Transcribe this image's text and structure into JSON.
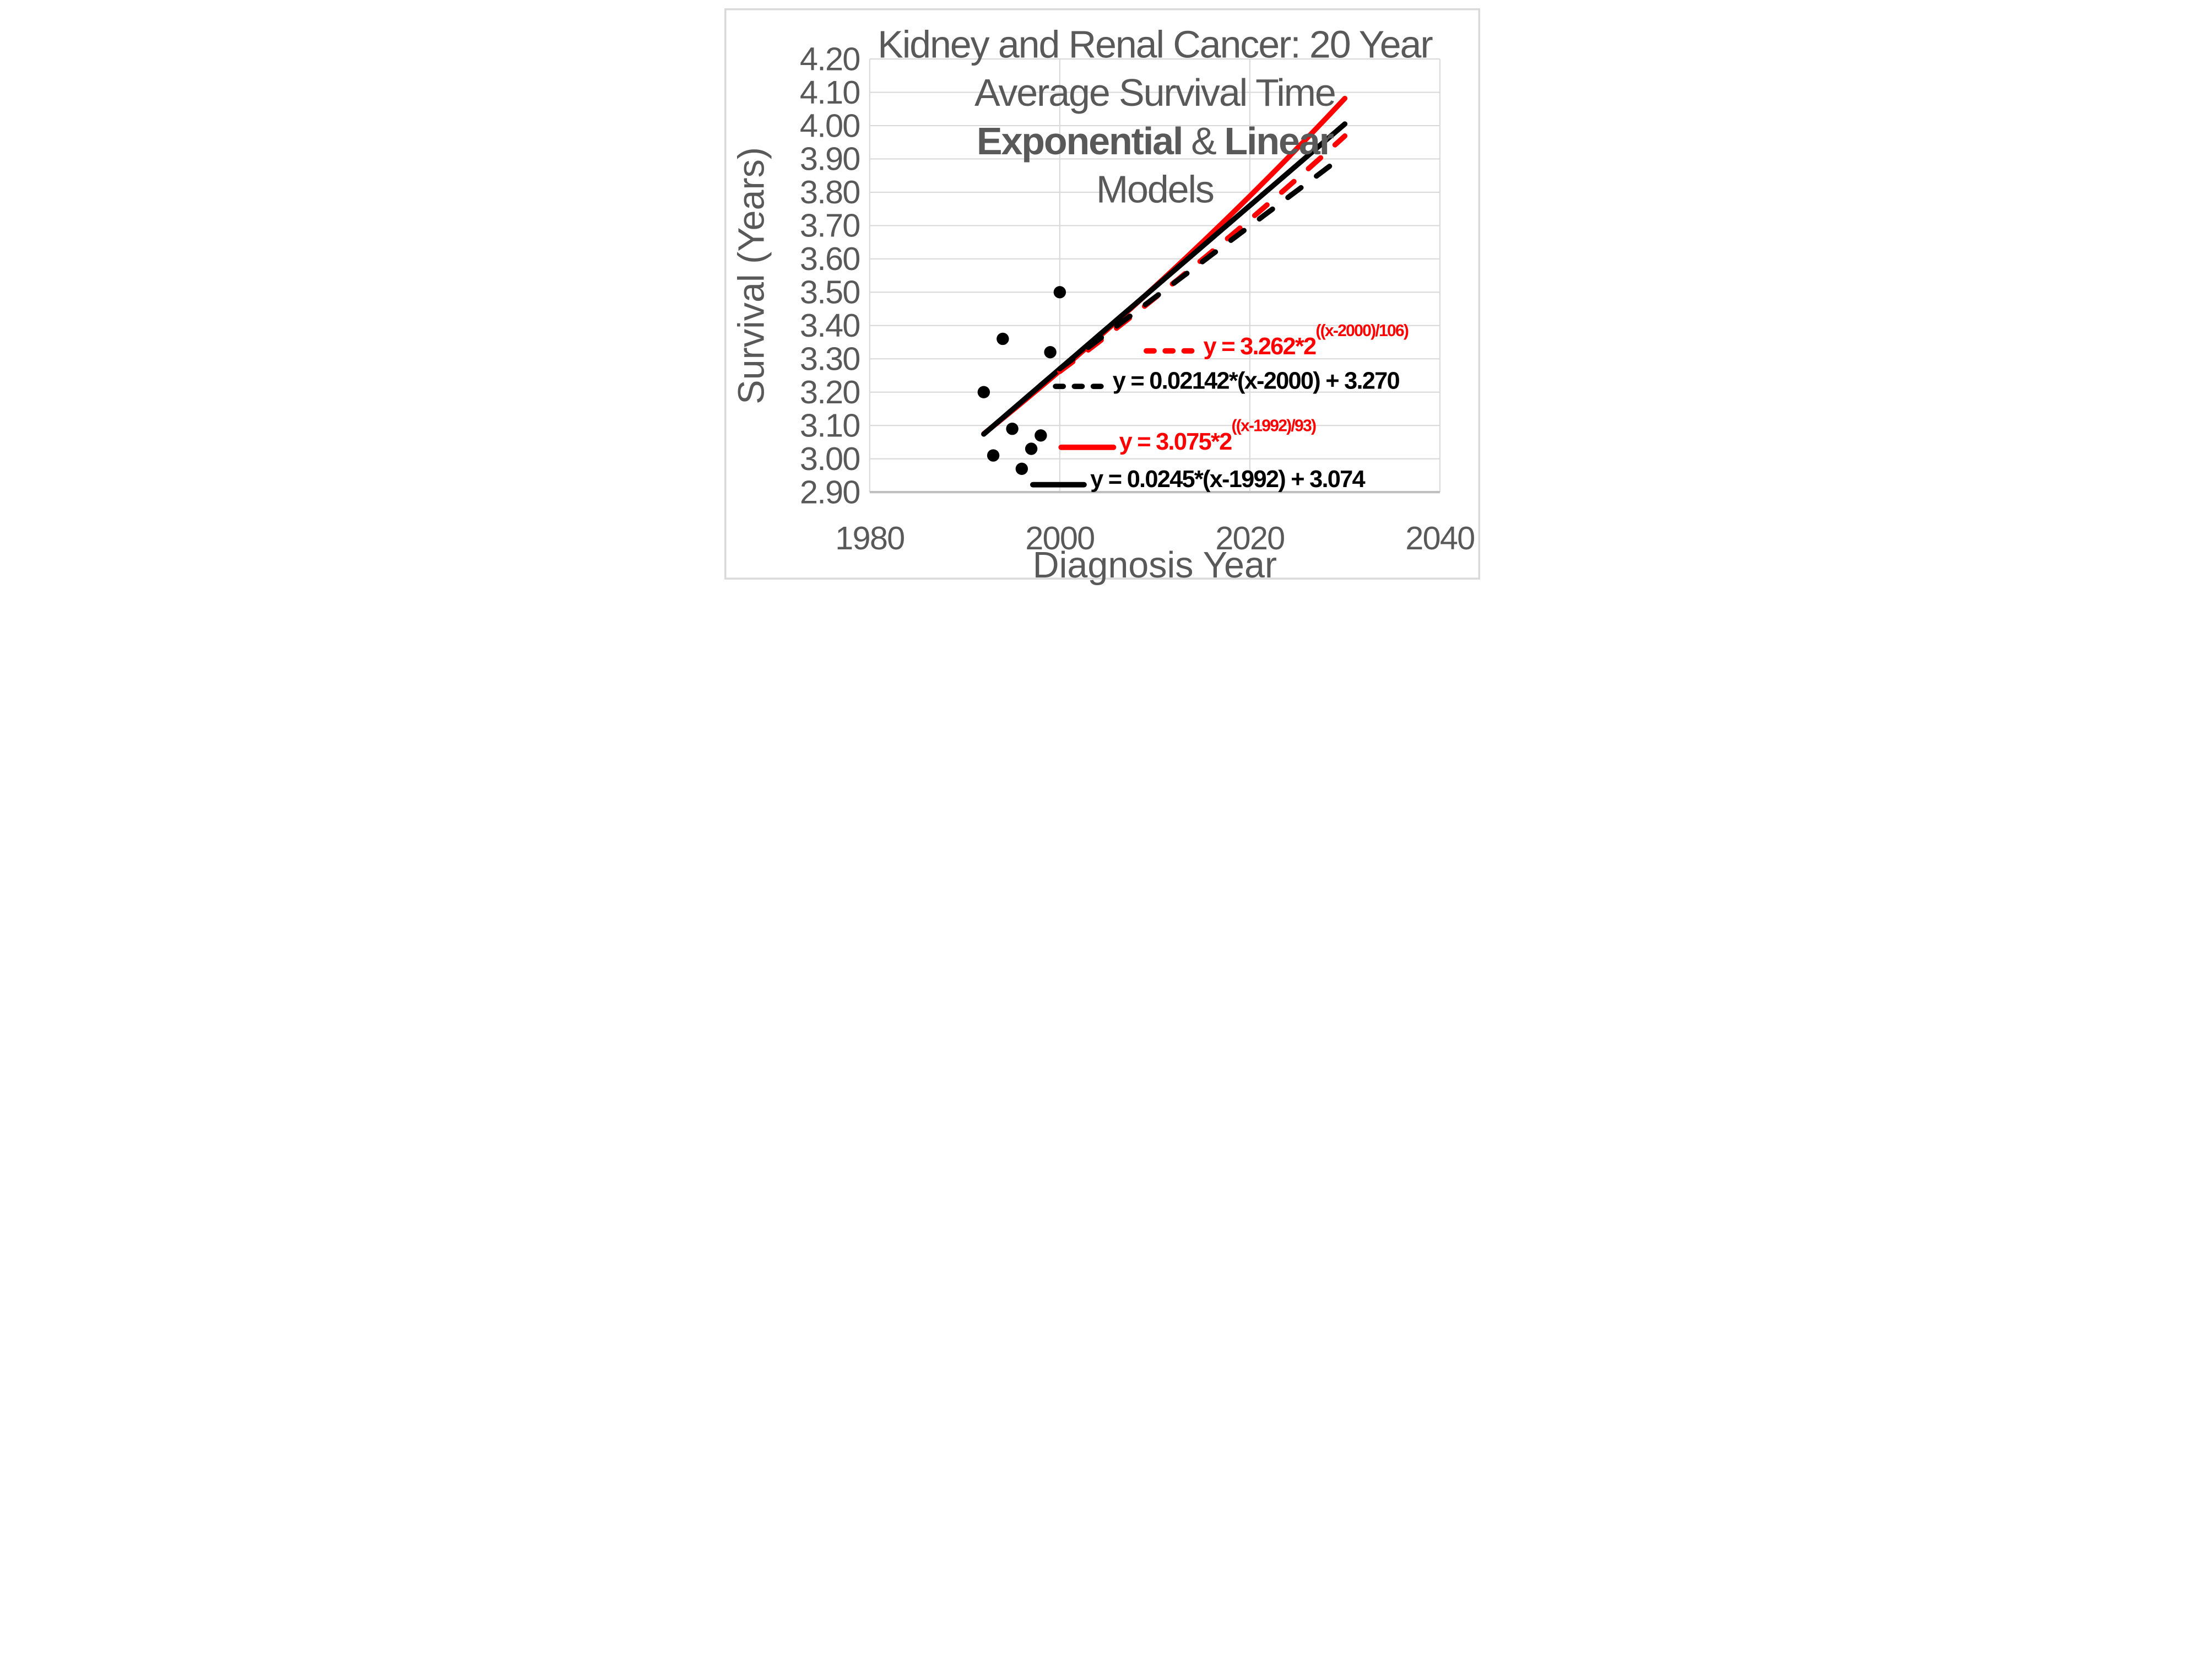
{
  "page": {
    "background": "#FFFFFF",
    "border_color": "#D9D9D9"
  },
  "title": {
    "line1": "Kidney and Renal Cancer: 20 Year",
    "line2": "Average Survival Time",
    "line3_bold1": "Exponential",
    "line3_amp": "&",
    "line3_bold2": "Linear",
    "line4": "Models",
    "color": "#595959"
  },
  "axes": {
    "x_title": "Diagnosis Year",
    "y_title": "Survival (Years)",
    "x_ticks": [
      "1980",
      "2000",
      "2020",
      "2040"
    ],
    "y_ticks": [
      "4.20",
      "4.10",
      "4.00",
      "3.90",
      "3.80",
      "3.70",
      "3.60",
      "3.50",
      "3.40",
      "3.30",
      "3.20",
      "3.10",
      "3.00",
      "2.90"
    ],
    "text_color": "#595959",
    "grid_color": "#D9D9D9",
    "axis_line_color": "#BFBFBF"
  },
  "chart_data": {
    "type": "scatter",
    "title": "Kidney and Renal Cancer: 20 Year Average Survival Time Exponential & Linear Models",
    "xlabel": "Diagnosis Year",
    "ylabel": "Survival (Years)",
    "xlim": [
      1980,
      2040
    ],
    "ylim": [
      2.9,
      4.2
    ],
    "x_tick_values": [
      1980,
      2000,
      2020,
      2040
    ],
    "y_tick_values": [
      4.2,
      4.1,
      4.0,
      3.9,
      3.8,
      3.7,
      3.6,
      3.5,
      3.4,
      3.3,
      3.2,
      3.1,
      3.0,
      2.9
    ],
    "grid": true,
    "legend_position": "inside-right",
    "points": {
      "x": [
        1992,
        1993,
        1994,
        1995,
        1996,
        1997,
        1998,
        1999,
        2000
      ],
      "y": [
        3.2,
        3.01,
        3.36,
        3.09,
        2.97,
        3.03,
        3.07,
        3.32,
        3.5
      ],
      "color": "#000000",
      "marker": "circle"
    },
    "models": [
      {
        "id": "exp2000",
        "kind": "exponential",
        "equation": "y = 3.262*2^((x-2000)/106)",
        "label_main": "y = 3.262*2",
        "label_sup": "((x-2000)/106)",
        "a": 3.262,
        "x0": 2000,
        "doubling": 106,
        "domain": [
          2000,
          2030
        ],
        "color": "#FF0000",
        "dash": true
      },
      {
        "id": "lin2000",
        "kind": "linear",
        "equation": "y = 0.02142*(x-2000) + 3.270",
        "label_main": "y = 0.02142*(x-2000) + 3.270",
        "label_sup": "",
        "slope": 0.02142,
        "x0": 2000,
        "intercept": 3.27,
        "domain": [
          2000,
          2030
        ],
        "color": "#000000",
        "dash": true
      },
      {
        "id": "exp1992",
        "kind": "exponential",
        "equation": "y = 3.075*2^((x-1992)/93)",
        "label_main": "y = 3.075*2",
        "label_sup": "((x-1992)/93)",
        "a": 3.075,
        "x0": 1992,
        "doubling": 93,
        "domain": [
          1992,
          2030
        ],
        "color": "#FF0000",
        "dash": false
      },
      {
        "id": "lin1992",
        "kind": "linear",
        "equation": "y = 0.0245*(x-1992) + 3.074",
        "label_main": "y = 0.0245*(x-1992) + 3.074",
        "label_sup": "",
        "slope": 0.0245,
        "x0": 1992,
        "intercept": 3.074,
        "domain": [
          1992,
          2030
        ],
        "color": "#000000",
        "dash": false
      }
    ]
  }
}
